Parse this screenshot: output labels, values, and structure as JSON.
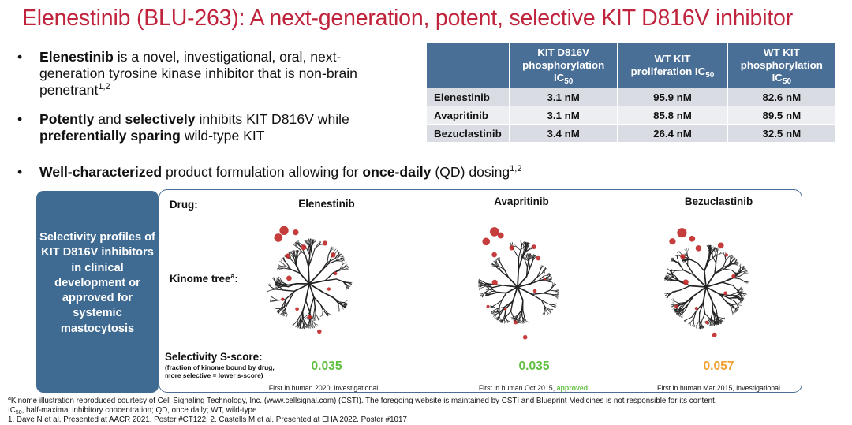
{
  "title": "Elenestinib (BLU-263): A next-generation, potent, selective KIT D816V inhibitor",
  "bullets": {
    "b1": {
      "bold": "Elenestinib",
      "text": " is a novel, investigational, oral, next-generation tyrosine kinase inhibitor that is non-brain penetrant",
      "sup": "1,2"
    },
    "b2": {
      "bold1": "Potently",
      "and": " and ",
      "bold2": "selectively",
      "mid": " inhibits KIT D816V while ",
      "bold3": "preferentially sparing",
      "end": " wild-type KIT"
    },
    "b3": {
      "bold1": "Well-characterized",
      "mid": " product formulation allowing for ",
      "bold2": "once-daily",
      "end": " (QD) dosing",
      "sup": "1,2"
    }
  },
  "table": {
    "headers": [
      {
        "line1": "KIT D816V",
        "line2": "phosphorylation",
        "line3": "IC",
        "sub": "50"
      },
      {
        "line1": "WT KIT",
        "line2": "proliferation IC",
        "line3": "",
        "sub": "50"
      },
      {
        "line1": "WT KIT",
        "line2": "phosphorylation",
        "line3": "IC",
        "sub": "50"
      }
    ],
    "rows": [
      {
        "drug": "Elenestinib",
        "values": [
          "3.1 nM",
          "95.9 nM",
          "82.6 nM"
        ]
      },
      {
        "drug": "Avapritinib",
        "values": [
          "3.1 nM",
          "85.8 nM",
          "89.5 nM"
        ]
      },
      {
        "drug": "Bezuclastinib",
        "values": [
          "3.4 nM",
          "26.4 nM",
          "32.5 nM"
        ]
      }
    ]
  },
  "selectivity": {
    "side_label": "Selectivity profiles of KIT D816V inhibitors in clinical development or approved for systemic mastocytosis",
    "drug_label": "Drug:",
    "kinome_label": "Kinome tree",
    "kinome_sup": "a",
    "kinome_colon": ":",
    "score_label": "Selectivity S-score:",
    "score_note": "(fraction of kinome bound by drug, more selective = lower s-score)",
    "drugs": [
      {
        "name": "Elenestinib",
        "score": "0.035",
        "score_color": "#5fbf3f",
        "first": "First in human 2020, investigational",
        "approved": "",
        "first_end": ""
      },
      {
        "name": "Avapritinib",
        "score": "0.035",
        "score_color": "#5fbf3f",
        "first": "First in human Oct 2015, ",
        "approved": "approved",
        "first_end": ""
      },
      {
        "name": "Bezuclastinib",
        "score": "0.057",
        "score_color": "#f0a030",
        "first": "First in human Mar 2015, investigational",
        "approved": "",
        "first_end": ""
      }
    ]
  },
  "footnotes": {
    "line1_sup": "a",
    "line1": "Kinome illustration reproduced courtesy of Cell Signaling Technology, Inc. (www.cellsignal.com) (CSTI). The foregoing website is maintained by CSTI and Blueprint Medicines is not responsible for its content.",
    "line2_pre": "IC",
    "line2_sub": "50",
    "line2": ", half-maximal inhibitory concentration; QD, once daily; WT, wild-type.",
    "line3": "1. Dave N et al. Presented at AACR 2021. Poster #CT122; 2. Castells M et al. Presented at EHA 2022. Poster #1017"
  },
  "colors": {
    "title": "#c0243c",
    "table_header": "#4a6f96",
    "sidebox": "#3f6a91",
    "dot": "#c02828",
    "score_green": "#5fbf3f",
    "score_orange": "#f0a030"
  }
}
